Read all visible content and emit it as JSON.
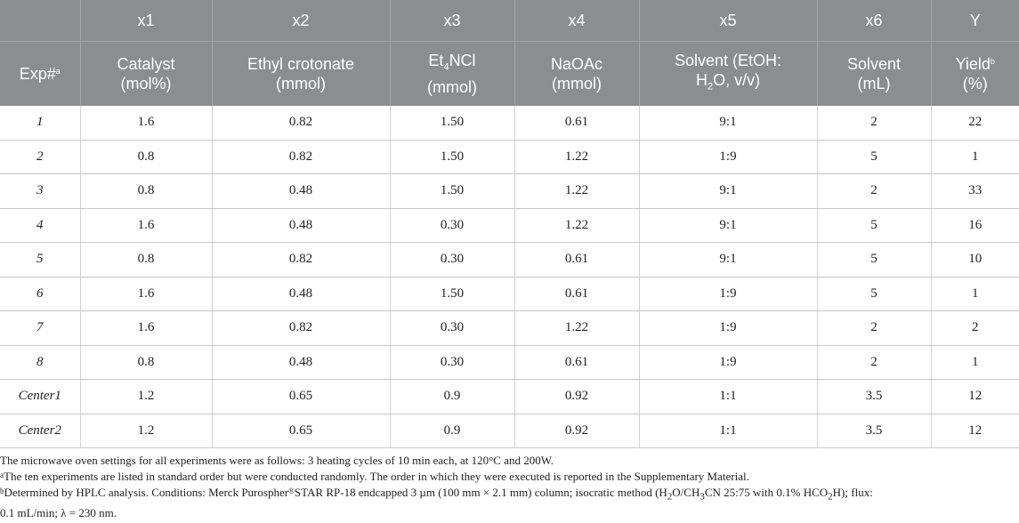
{
  "table": {
    "var_row": [
      "",
      "x1",
      "x2",
      "x3",
      "x4",
      "x5",
      "x6",
      "Y"
    ],
    "headers": {
      "exp": "Exp#",
      "exp_sup": "a",
      "catalyst": [
        "Catalyst",
        "(mol%)"
      ],
      "ethyl": [
        "Ethyl crotonate",
        "(mmol)"
      ],
      "et4ncl_pre": "Et",
      "et4ncl_sub": "4",
      "et4ncl_post": "NCl",
      "et4ncl_unit": "(mmol)",
      "naoac": [
        "NaOAc",
        "(mmol)"
      ],
      "solvent_ratio_l1": "Solvent (EtOH:",
      "solvent_ratio_l2_pre": "H",
      "solvent_ratio_l2_sub": "2",
      "solvent_ratio_l2_post": "O, v/v)",
      "solvent_ml": [
        "Solvent",
        "(mL)"
      ],
      "yield": "Yield",
      "yield_sup": "b",
      "yield_unit": "(%)"
    },
    "rows": [
      [
        "1",
        "1.6",
        "0.82",
        "1.50",
        "0.61",
        "9:1",
        "2",
        "22"
      ],
      [
        "2",
        "0.8",
        "0.82",
        "1.50",
        "1.22",
        "1:9",
        "5",
        "1"
      ],
      [
        "3",
        "0.8",
        "0.48",
        "1.50",
        "1.22",
        "9:1",
        "2",
        "33"
      ],
      [
        "4",
        "1.6",
        "0.48",
        "0.30",
        "1.22",
        "9:1",
        "5",
        "16"
      ],
      [
        "5",
        "0.8",
        "0.82",
        "0.30",
        "0.61",
        "9:1",
        "5",
        "10"
      ],
      [
        "6",
        "1.6",
        "0.48",
        "1.50",
        "0.61",
        "1:9",
        "5",
        "1"
      ],
      [
        "7",
        "1.6",
        "0.82",
        "0.30",
        "1.22",
        "1:9",
        "2",
        "2"
      ],
      [
        "8",
        "0.8",
        "0.48",
        "0.30",
        "0.61",
        "1:9",
        "2",
        "1"
      ],
      [
        "Center1",
        "1.2",
        "0.65",
        "0.9",
        "0.92",
        "1:1",
        "3.5",
        "12"
      ],
      [
        "Center2",
        "1.2",
        "0.65",
        "0.9",
        "0.92",
        "1:1",
        "3.5",
        "12"
      ]
    ]
  },
  "notes": {
    "settings": "The microwave oven settings for all experiments were as follows: 3 heating cycles of 10 min each, at 120°C and 200W.",
    "a_mark": "a",
    "a_text": "The ten experiments are listed in standard order but were conducted randomly. The order in which they were executed is reported in the Supplementary Material.",
    "b_mark": "b",
    "b_text_1": "Determined by HPLC analysis. Conditions: Merck Purospher",
    "b_reg": "®",
    "b_text_2": "STAR RP-18 endcapped 3 µm (100 mm × 2.1 mm) column; isocratic method (H",
    "b_sub1": "2",
    "b_text_3": "O/CH",
    "b_sub2": "3",
    "b_text_4": "CN 25:75 with 0.1% HCO",
    "b_sub3": "2",
    "b_text_5": "H); flux:",
    "b_text_6": "0.1 mL/min; λ = 230 nm."
  }
}
